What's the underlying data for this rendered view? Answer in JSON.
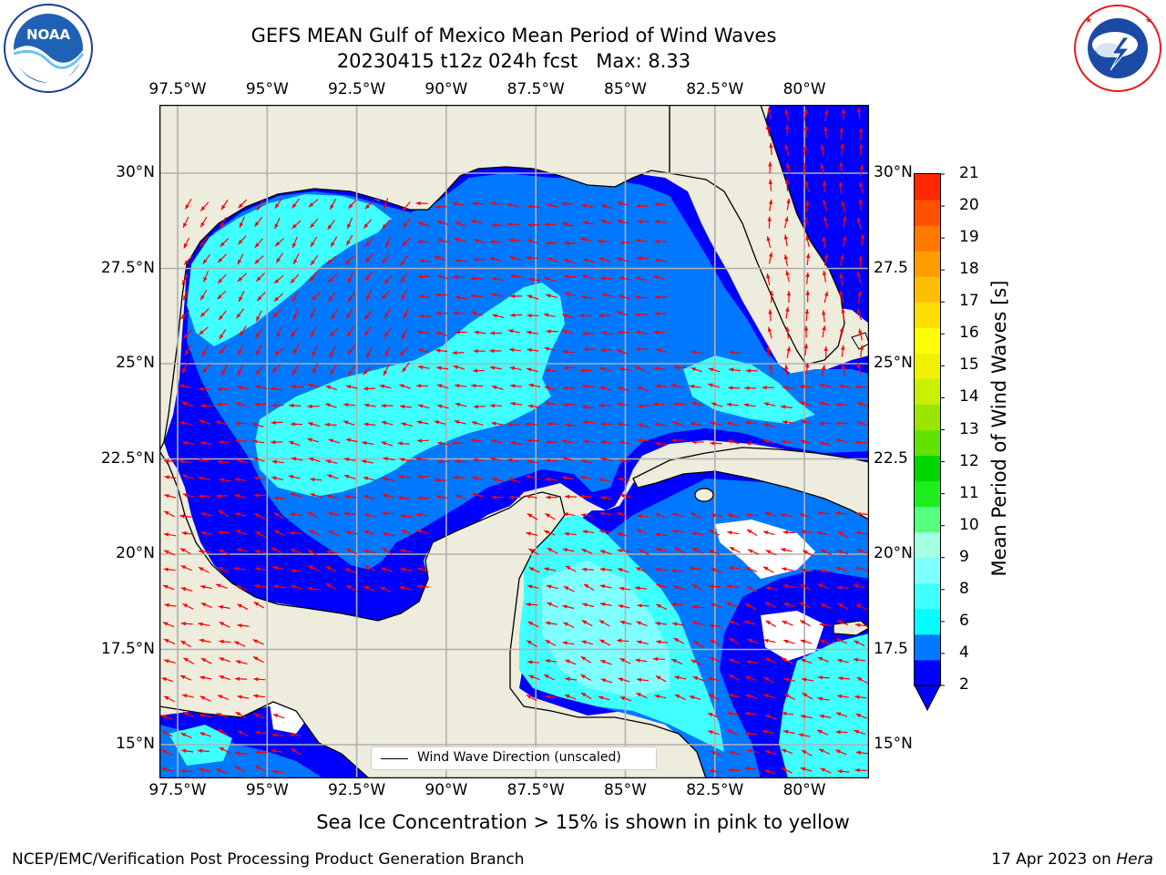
{
  "title": {
    "line1": "GEFS MEAN Gulf of Mexico Mean Period of Wind Waves",
    "line2": "20230415 t12z 024h fcst   Max: 8.33"
  },
  "logos": {
    "left": {
      "name": "noaa-logo",
      "text": "NOAA",
      "ring_text": "NATIONAL OCEANIC AND ATMOSPHERIC ADMINISTRATION · U.S. DEPARTMENT OF COMMERCE"
    },
    "right": {
      "name": "nws-logo",
      "ring_text": "NATIONAL WEATHER SERVICE"
    }
  },
  "map": {
    "lon_ticks": [
      "97.5°W",
      "95°W",
      "92.5°W",
      "90°W",
      "87.5°W",
      "85°W",
      "82.5°W",
      "80°W"
    ],
    "lat_ticks_left": [
      "30°N",
      "27.5°N",
      "25°N",
      "22.5°N",
      "20°N",
      "17.5°N",
      "15°N"
    ],
    "lat_ticks_right": [
      "30°N",
      "27.5",
      "25°N",
      "22.5",
      "20°N",
      "17.5",
      "15°N"
    ],
    "legend_label": "Wind Wave Direction (unscaled)",
    "land_color": "#eeecdc",
    "arrow_color": "#ff0000"
  },
  "colorbar": {
    "label": "Mean Period of Wind Waves [s]",
    "ticks": [
      "21",
      "20",
      "19",
      "18",
      "17",
      "16",
      "15",
      "14",
      "13",
      "12",
      "11",
      "10",
      "9",
      "8",
      "6",
      "4",
      "2"
    ],
    "colors": [
      "#0000ff",
      "#0078ff",
      "#00ffff",
      "#40ffff",
      "#7fffff",
      "#a4ffe4",
      "#55ff80",
      "#1eed1e",
      "#00d600",
      "#62e200",
      "#9be600",
      "#c8f000",
      "#f0f000",
      "#ffff00",
      "#ffde00",
      "#ffbe00",
      "#ff9c00",
      "#ff7800",
      "#ff5000",
      "#ff2800"
    ]
  },
  "footer": {
    "left": "NCEP/EMC/Verification Post Processing Product Generation Branch",
    "right_date": "17 Apr 2023 on ",
    "right_host": "Hera"
  },
  "note": "Sea Ice Concentration > 15% is shown in pink to yellow"
}
